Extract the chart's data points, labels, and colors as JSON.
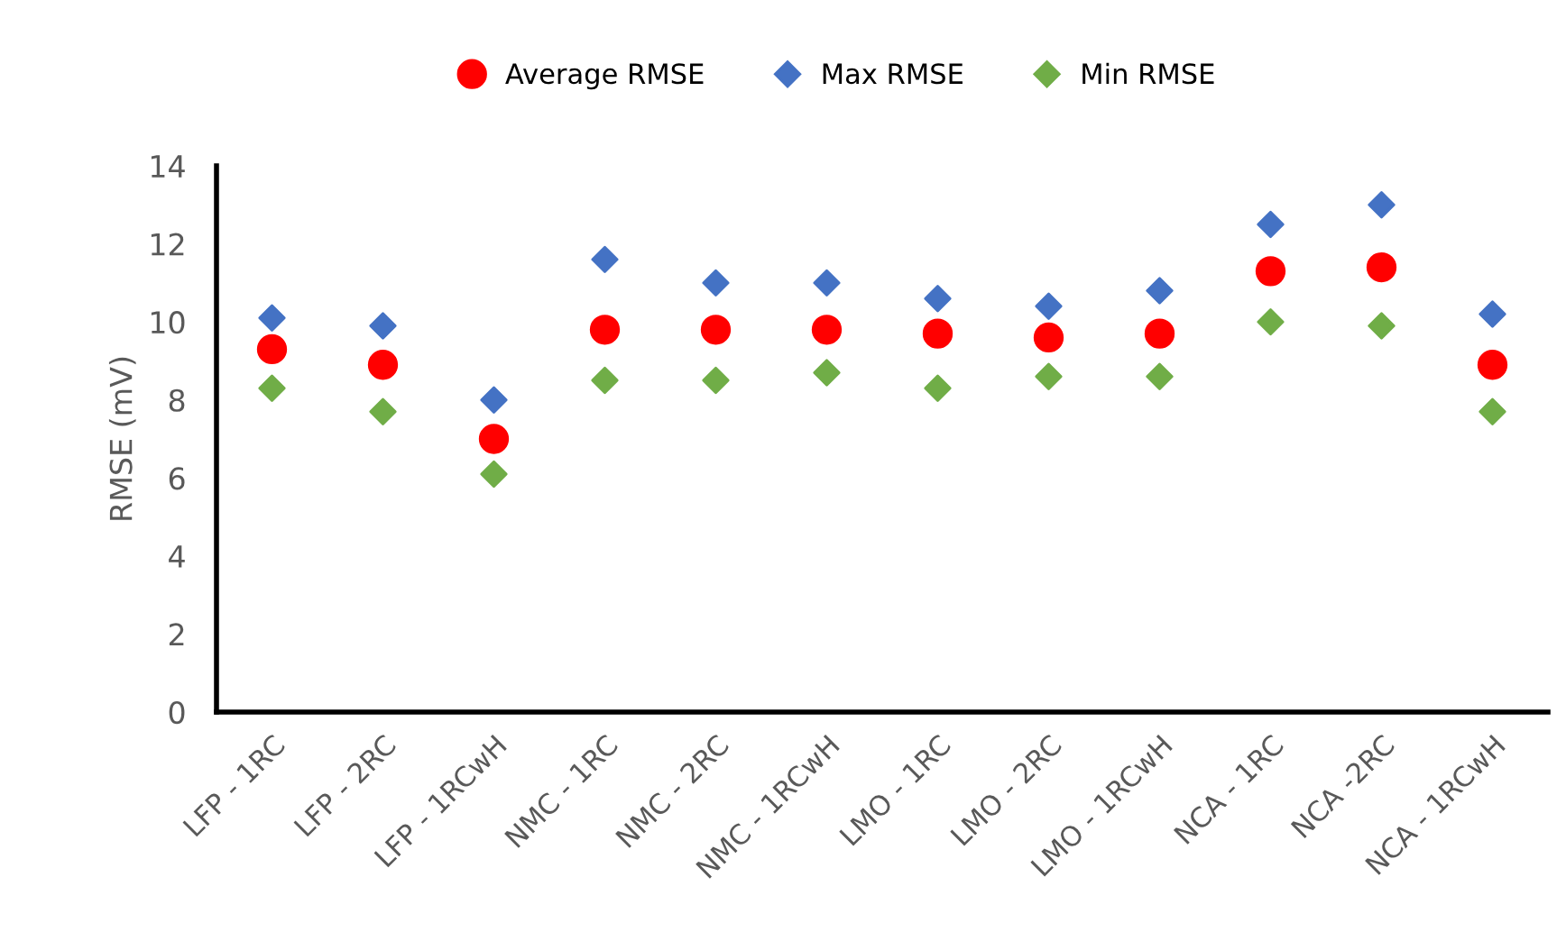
{
  "chart_data": {
    "type": "scatter",
    "ylabel": "RMSE (mV)",
    "categories": [
      "LFP - 1RC",
      "LFP - 2RC",
      "LFP - 1RCwH",
      "NMC - 1RC",
      "NMC - 2RC",
      "NMC - 1RCwH",
      "LMO - 1RC",
      "LMO - 2RC",
      "LMO - 1RCwH",
      "NCA - 1RC",
      "NCA -2RC",
      "NCA - 1RCwH"
    ],
    "series": [
      {
        "name": "Average RMSE",
        "color": "#ff0000",
        "marker": "circle",
        "values": [
          9.3,
          8.9,
          7.0,
          9.8,
          9.8,
          9.8,
          9.7,
          9.6,
          9.7,
          11.3,
          11.4,
          8.9
        ]
      },
      {
        "name": "Max RMSE",
        "color": "#4472c4",
        "marker": "diamond",
        "values": [
          10.1,
          9.9,
          8.0,
          11.6,
          11.0,
          11.0,
          10.6,
          10.4,
          10.8,
          12.5,
          13.0,
          10.2
        ]
      },
      {
        "name": "Min RMSE",
        "color": "#70ad47",
        "marker": "diamond",
        "values": [
          8.3,
          7.7,
          6.1,
          8.5,
          8.5,
          8.7,
          8.3,
          8.6,
          8.6,
          10.0,
          9.9,
          7.7
        ]
      }
    ],
    "ylim": [
      0,
      14
    ],
    "yticks": [
      0,
      2,
      4,
      6,
      8,
      10,
      12,
      14
    ],
    "grid": false,
    "legend": "top"
  }
}
